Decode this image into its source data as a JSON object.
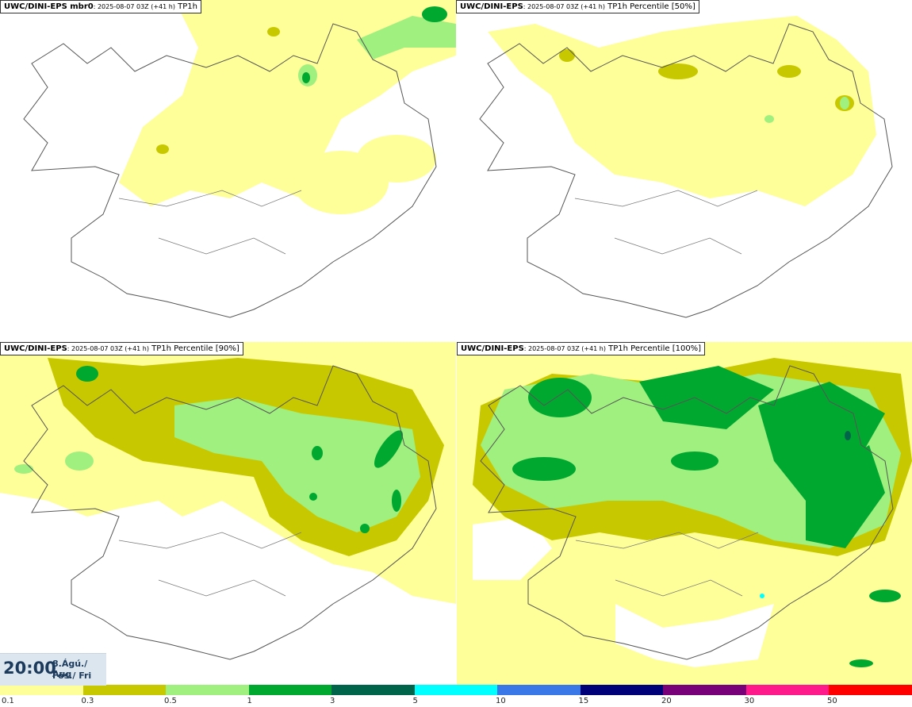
{
  "panels": [
    {
      "model": "UWC/DINI-EPS mbr0",
      "meta": ": 2025-08-07 03Z (+41 h)",
      "field": " TP1h"
    },
    {
      "model": "UWC/DINI-EPS",
      "meta": ": 2025-08-07 03Z (+41 h)",
      "field": " TP1h Percentile [50%]"
    },
    {
      "model": "UWC/DINI-EPS",
      "meta": ": 2025-08-07 03Z (+41 h)",
      "field": " TP1h Percentile [90%]"
    },
    {
      "model": "UWC/DINI-EPS",
      "meta": ": 2025-08-07 03Z (+41 h)",
      "field": " TP1h Percentile [100%]"
    }
  ],
  "time": {
    "hour": "20:00",
    "date": "8.Ágú./ Aug",
    "weekday": "Fös./ Fri"
  },
  "legend": {
    "labels": [
      "0.1",
      "0.3",
      "0.5",
      "1",
      "3",
      "5",
      "10",
      "15",
      "20",
      "30",
      "50"
    ],
    "colors": [
      "#ffff99",
      "#c8c800",
      "#a0f080",
      "#00a830",
      "#00644b",
      "#00ffff",
      "#3a78e8",
      "#000078",
      "#780078",
      "#ff1a8c",
      "#ff0000"
    ]
  }
}
